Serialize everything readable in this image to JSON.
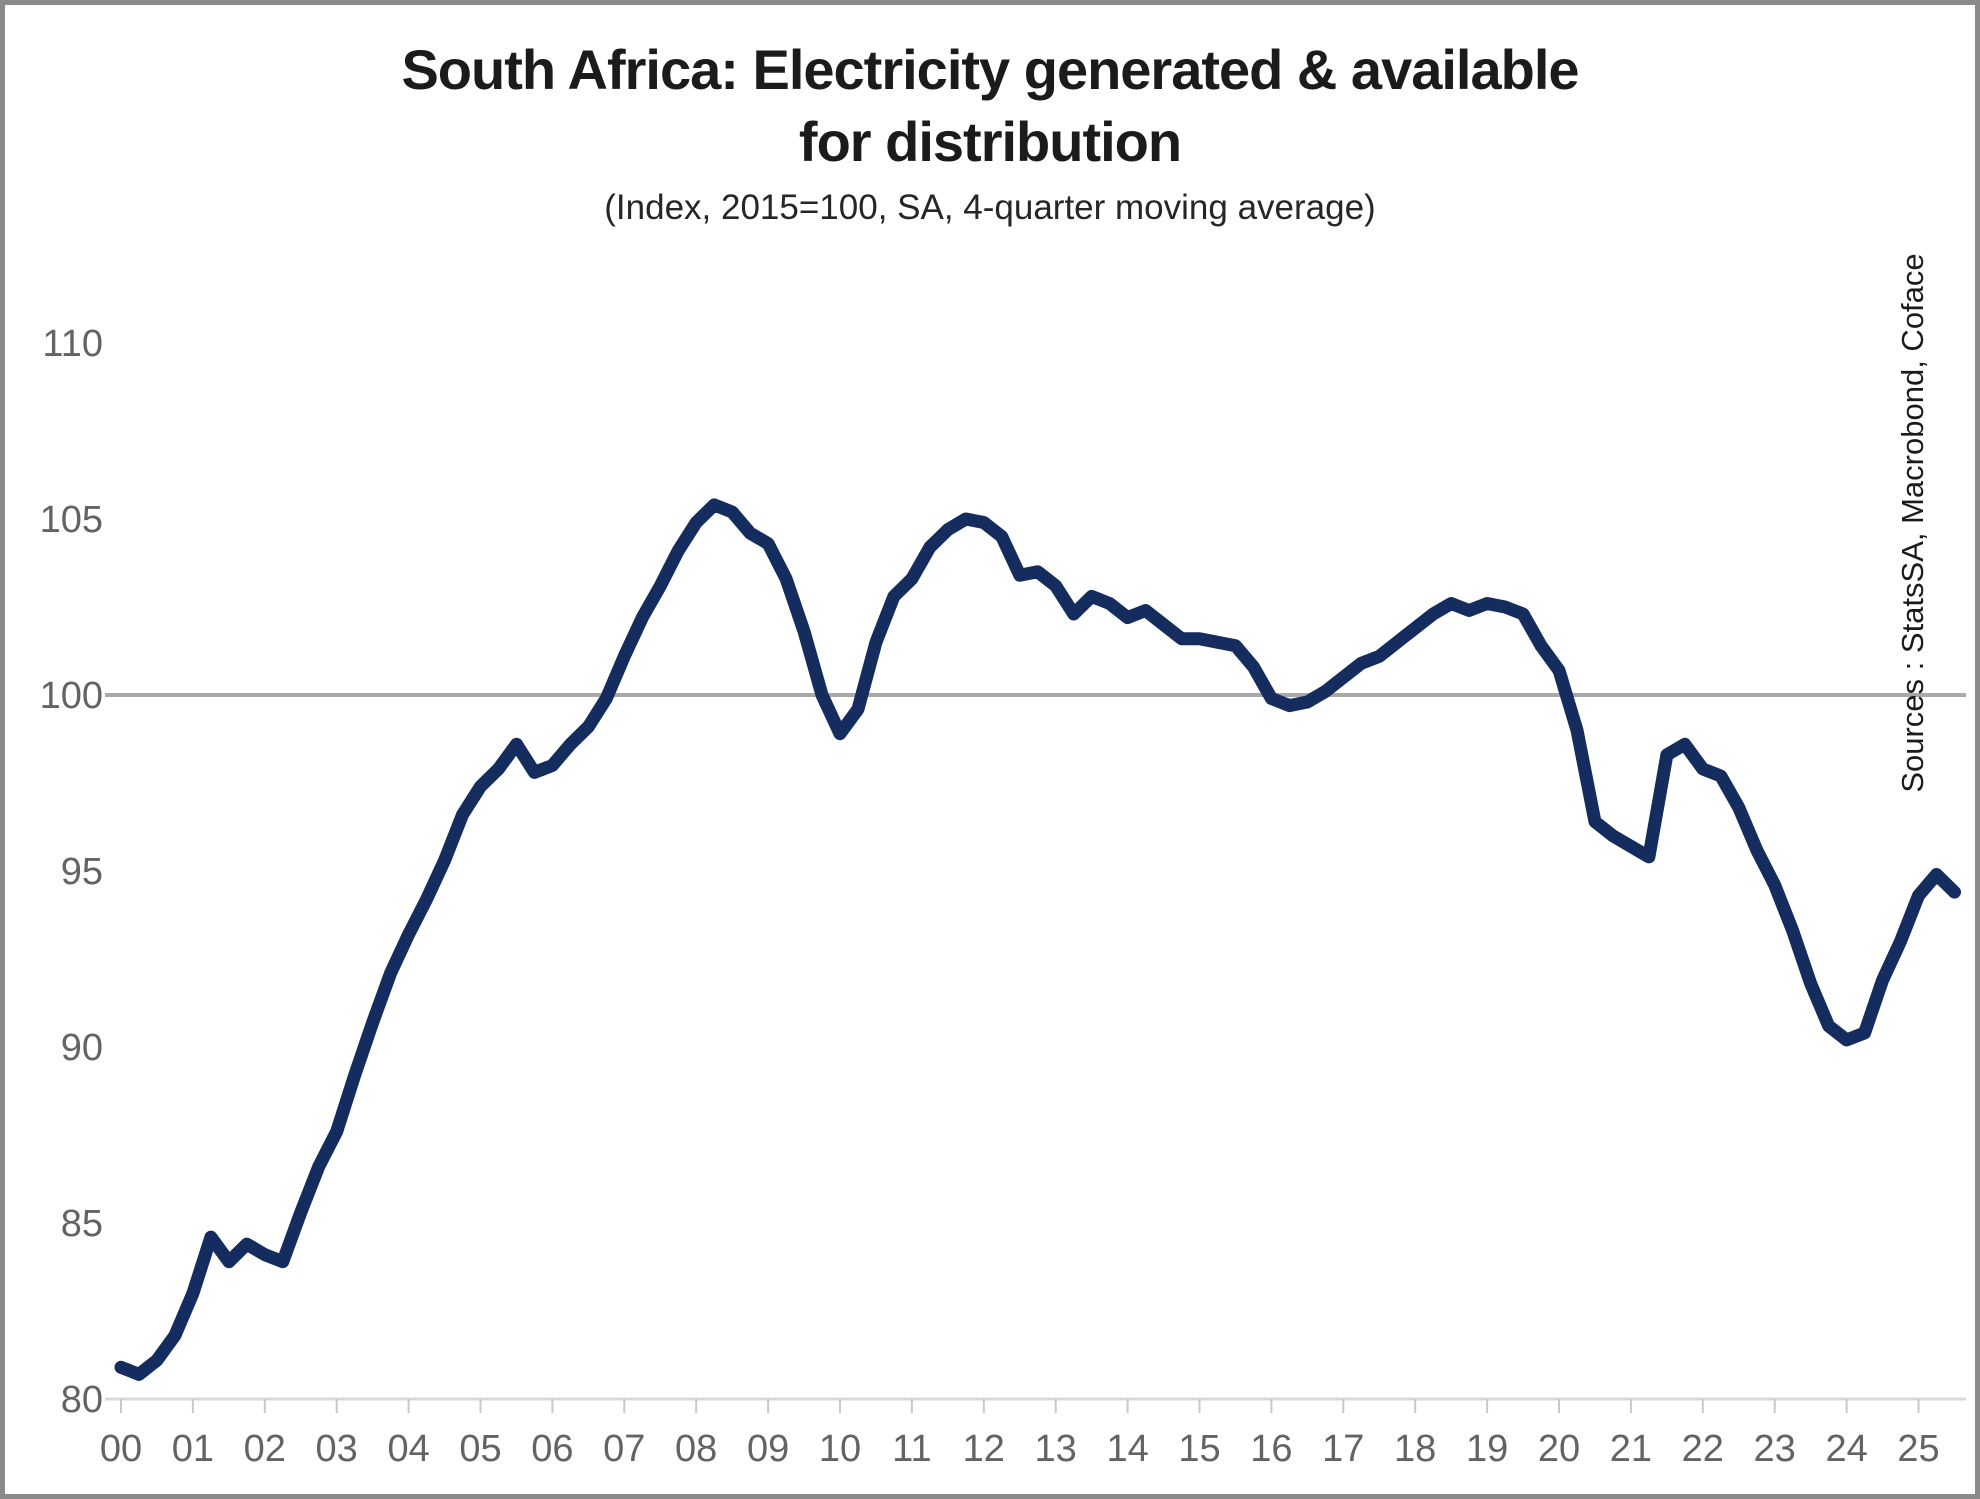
{
  "colors": {
    "line": "#152c5e",
    "reference_line": "#a9a9a9",
    "axis_line": "#d9d9d9",
    "tick_mark": "#c8c8c8",
    "axis_label": "#636363",
    "frame": "#8a8a8c",
    "background": "#ffffff",
    "title_text": "#1b1b1b"
  },
  "chart_data": {
    "type": "line",
    "title": "South Africa: Electricity generated & available for distribution",
    "title_line1": "South Africa: Electricity generated & available",
    "title_line2": "for distribution",
    "subtitle": "(Index, 2015=100, SA, 4-quarter moving average)",
    "source_note": "Sources : StatsSA, Macrobond, Coface",
    "xlabel": "",
    "ylabel": "",
    "ylim": [
      80,
      110
    ],
    "xlim": [
      2000,
      2025.75
    ],
    "y_ticks": [
      80,
      85,
      90,
      95,
      100,
      105,
      110
    ],
    "x_tick_years": [
      2000,
      2001,
      2002,
      2003,
      2004,
      2005,
      2006,
      2007,
      2008,
      2009,
      2010,
      2011,
      2012,
      2013,
      2014,
      2015,
      2016,
      2017,
      2018,
      2019,
      2020,
      2021,
      2022,
      2023,
      2024,
      2025
    ],
    "x_tick_labels": [
      "00",
      "01",
      "02",
      "03",
      "04",
      "05",
      "06",
      "07",
      "08",
      "09",
      "10",
      "11",
      "12",
      "13",
      "14",
      "15",
      "16",
      "17",
      "18",
      "19",
      "20",
      "21",
      "22",
      "23",
      "24",
      "25"
    ],
    "reference_line_y": 100,
    "grid": "off",
    "legend": "none",
    "series": [
      {
        "name": "Electricity generated & available for distribution (index 2015=100, SA, 4-quarter moving average)",
        "x_start": 2000,
        "x_step": 0.25,
        "x": [
          2000.0,
          2000.25,
          2000.5,
          2000.75,
          2001.0,
          2001.25,
          2001.5,
          2001.75,
          2002.0,
          2002.25,
          2002.5,
          2002.75,
          2003.0,
          2003.25,
          2003.5,
          2003.75,
          2004.0,
          2004.25,
          2004.5,
          2004.75,
          2005.0,
          2005.25,
          2005.5,
          2005.75,
          2006.0,
          2006.25,
          2006.5,
          2006.75,
          2007.0,
          2007.25,
          2007.5,
          2007.75,
          2008.0,
          2008.25,
          2008.5,
          2008.75,
          2009.0,
          2009.25,
          2009.5,
          2009.75,
          2010.0,
          2010.25,
          2010.5,
          2010.75,
          2011.0,
          2011.25,
          2011.5,
          2011.75,
          2012.0,
          2012.25,
          2012.5,
          2012.75,
          2013.0,
          2013.25,
          2013.5,
          2013.75,
          2014.0,
          2014.25,
          2014.5,
          2014.75,
          2015.0,
          2015.25,
          2015.5,
          2015.75,
          2016.0,
          2016.25,
          2016.5,
          2016.75,
          2017.0,
          2017.25,
          2017.5,
          2017.75,
          2018.0,
          2018.25,
          2018.5,
          2018.75,
          2019.0,
          2019.25,
          2019.5,
          2019.75,
          2020.0,
          2020.25,
          2020.5,
          2020.75,
          2021.0,
          2021.25,
          2021.5,
          2021.75,
          2022.0,
          2022.25,
          2022.5,
          2022.75,
          2023.0,
          2023.25,
          2023.5,
          2023.75,
          2024.0,
          2024.25,
          2024.5,
          2024.75,
          2025.0,
          2025.25,
          2025.5
        ],
        "values": [
          80.9,
          80.7,
          81.1,
          81.8,
          83.0,
          84.6,
          83.9,
          84.4,
          84.1,
          83.9,
          85.3,
          86.6,
          87.6,
          89.2,
          90.7,
          92.1,
          93.2,
          94.2,
          95.3,
          96.6,
          97.4,
          97.9,
          98.6,
          97.8,
          98.0,
          98.6,
          99.1,
          99.9,
          101.1,
          102.2,
          103.1,
          104.1,
          104.9,
          105.4,
          105.2,
          104.6,
          104.3,
          103.3,
          101.8,
          100.0,
          98.9,
          99.6,
          101.5,
          102.8,
          103.3,
          104.2,
          104.7,
          105.0,
          104.9,
          104.5,
          103.4,
          103.5,
          103.1,
          102.3,
          102.8,
          102.6,
          102.2,
          102.4,
          102.0,
          101.6,
          101.6,
          101.5,
          101.4,
          100.8,
          99.9,
          99.7,
          99.8,
          100.1,
          100.5,
          100.9,
          101.1,
          101.5,
          101.9,
          102.3,
          102.6,
          102.4,
          102.6,
          102.5,
          102.3,
          101.4,
          100.7,
          99.0,
          96.4,
          96.0,
          95.7,
          95.4,
          98.3,
          98.6,
          97.9,
          97.7,
          96.8,
          95.6,
          94.6,
          93.3,
          91.8,
          90.6,
          90.2,
          90.4,
          91.9,
          93.0,
          94.3,
          94.9,
          94.4
        ]
      }
    ]
  }
}
